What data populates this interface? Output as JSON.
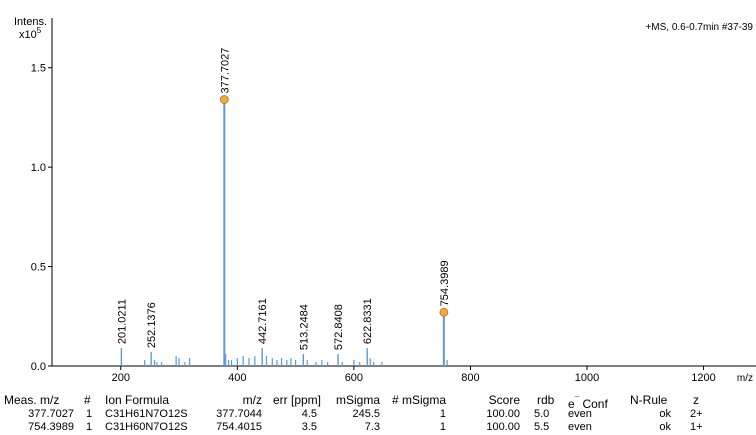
{
  "chart_data": {
    "type": "bar",
    "y_axis_label_line1": "Intens.",
    "y_axis_label_line2": "x10",
    "y_axis_exponent": "5",
    "scan_info": "+MS, 0.6-0.7min #37-39",
    "x_unit_label": "m/z",
    "xlim": [
      82,
      1290
    ],
    "ylim": [
      0,
      1.75
    ],
    "x_ticks": [
      "200",
      "400",
      "600",
      "800",
      "1000",
      "1200"
    ],
    "y_ticks": [
      "0.0",
      "0.5",
      "1.0",
      "1.5"
    ],
    "labeled_peaks": [
      {
        "mz": 201.0211,
        "intensity": 0.09,
        "label": "201.0211"
      },
      {
        "mz": 252.1376,
        "intensity": 0.07,
        "label": "252.1376"
      },
      {
        "mz": 377.7027,
        "intensity": 1.34,
        "label": "377.7027",
        "marker": true
      },
      {
        "mz": 442.7161,
        "intensity": 0.09,
        "label": "442.7161"
      },
      {
        "mz": 513.2484,
        "intensity": 0.06,
        "label": "513.2484"
      },
      {
        "mz": 572.8408,
        "intensity": 0.06,
        "label": "572.8408"
      },
      {
        "mz": 622.8331,
        "intensity": 0.09,
        "label": "622.8331"
      },
      {
        "mz": 754.3989,
        "intensity": 0.27,
        "label": "754.3989",
        "marker": true
      }
    ],
    "minor_peaks": [
      {
        "mz": 241,
        "intensity": 0.03
      },
      {
        "mz": 258,
        "intensity": 0.03
      },
      {
        "mz": 262,
        "intensity": 0.02
      },
      {
        "mz": 270,
        "intensity": 0.02
      },
      {
        "mz": 295,
        "intensity": 0.05
      },
      {
        "mz": 300,
        "intensity": 0.04
      },
      {
        "mz": 310,
        "intensity": 0.02
      },
      {
        "mz": 318,
        "intensity": 0.04
      },
      {
        "mz": 380,
        "intensity": 0.06
      },
      {
        "mz": 385,
        "intensity": 0.03
      },
      {
        "mz": 390,
        "intensity": 0.03
      },
      {
        "mz": 400,
        "intensity": 0.04
      },
      {
        "mz": 410,
        "intensity": 0.05
      },
      {
        "mz": 420,
        "intensity": 0.04
      },
      {
        "mz": 430,
        "intensity": 0.05
      },
      {
        "mz": 450,
        "intensity": 0.05
      },
      {
        "mz": 460,
        "intensity": 0.04
      },
      {
        "mz": 468,
        "intensity": 0.03
      },
      {
        "mz": 476,
        "intensity": 0.04
      },
      {
        "mz": 485,
        "intensity": 0.03
      },
      {
        "mz": 492,
        "intensity": 0.04
      },
      {
        "mz": 500,
        "intensity": 0.03
      },
      {
        "mz": 520,
        "intensity": 0.03
      },
      {
        "mz": 535,
        "intensity": 0.02
      },
      {
        "mz": 545,
        "intensity": 0.03
      },
      {
        "mz": 555,
        "intensity": 0.02
      },
      {
        "mz": 580,
        "intensity": 0.02
      },
      {
        "mz": 600,
        "intensity": 0.03
      },
      {
        "mz": 610,
        "intensity": 0.02
      },
      {
        "mz": 628,
        "intensity": 0.04
      },
      {
        "mz": 634,
        "intensity": 0.02
      },
      {
        "mz": 648,
        "intensity": 0.02
      },
      {
        "mz": 760,
        "intensity": 0.03
      }
    ],
    "colors": {
      "peak": "#5b9bd5",
      "marker": "#f2a93b",
      "marker_stroke": "#b8761e"
    }
  },
  "results_table": {
    "headers": {
      "meas_mz": "Meas. m/z",
      "num": "#",
      "ion_formula": "Ion Formula",
      "mz": "m/z",
      "err": "err [ppm]",
      "msigma": "mSigma",
      "num_msigma": "# mSigma",
      "score": "Score",
      "rdb": "rdb",
      "e_conf_prefix": "e",
      "e_conf_sup": "¯",
      "e_conf_suffix": " Conf",
      "n_rule": "N-Rule",
      "z": "z"
    },
    "rows": [
      {
        "meas_mz": "377.7027",
        "num": "1",
        "ion_formula": "C31H61N7O12S",
        "mz": "377.7044",
        "err": "4.5",
        "msigma": "245.5",
        "num_msigma": "1",
        "score": "100.00",
        "rdb": "5.0",
        "e_conf": "even",
        "n_rule": "ok",
        "z": "2+"
      },
      {
        "meas_mz": "754.3989",
        "num": "1",
        "ion_formula": "C31H60N7O12S",
        "mz": "754.4015",
        "err": "3.5",
        "msigma": "7.3",
        "num_msigma": "1",
        "score": "100.00",
        "rdb": "5.5",
        "e_conf": "even",
        "n_rule": "ok",
        "z": "1+"
      }
    ]
  }
}
